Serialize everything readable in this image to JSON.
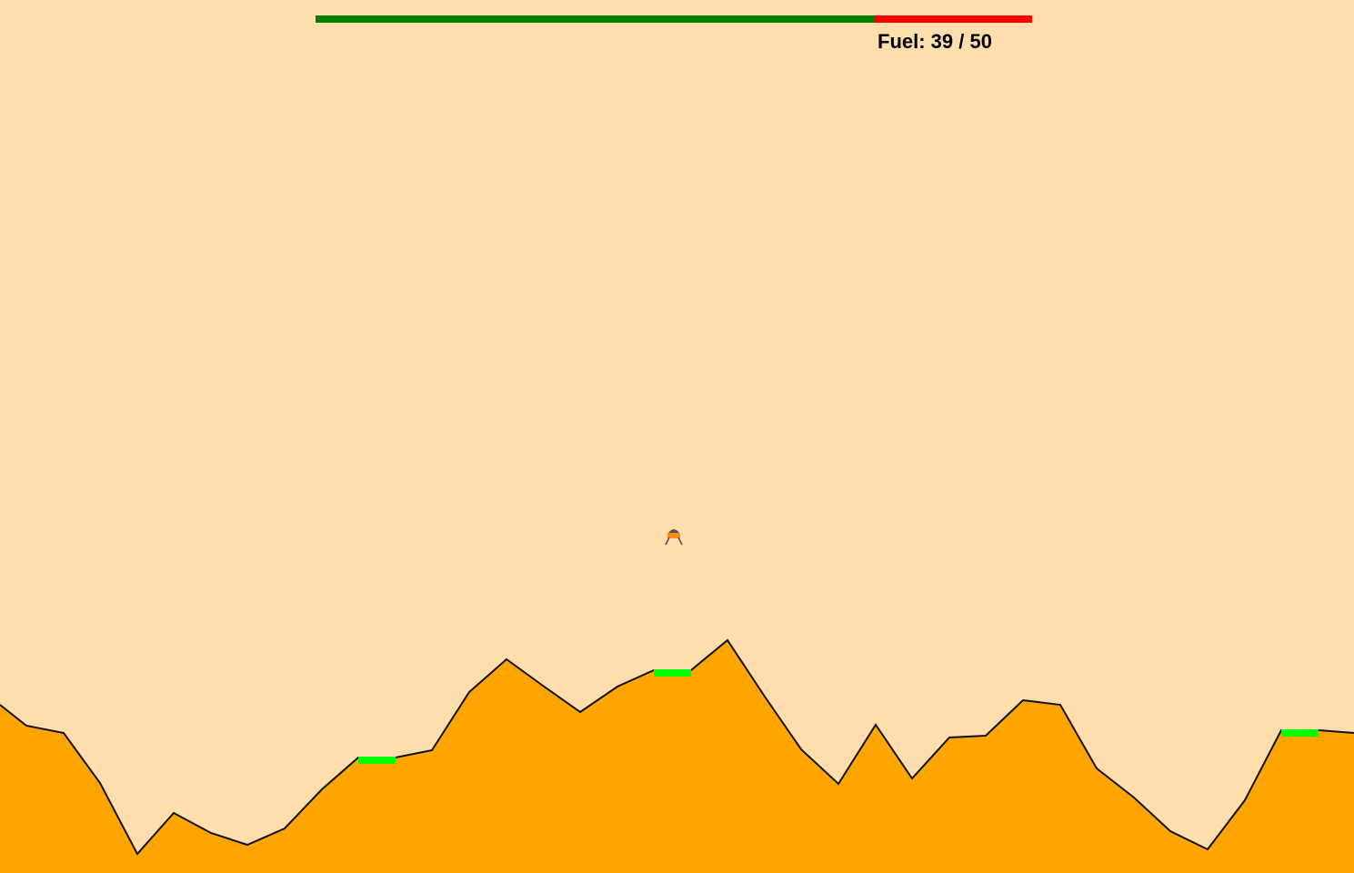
{
  "hud": {
    "fuel_label": "Fuel: 39 / 50",
    "fuel_current": 39,
    "fuel_max": 50,
    "fuel_fill_color": "#008000",
    "fuel_empty_color": "#ff0000"
  },
  "scene": {
    "sky_color": "#ffdead",
    "ground_color": "#ffa500",
    "landing_pad_color": "#00ff00",
    "landing_pad_count": 3
  },
  "lander": {
    "icon": "lunar-lander-icon"
  }
}
